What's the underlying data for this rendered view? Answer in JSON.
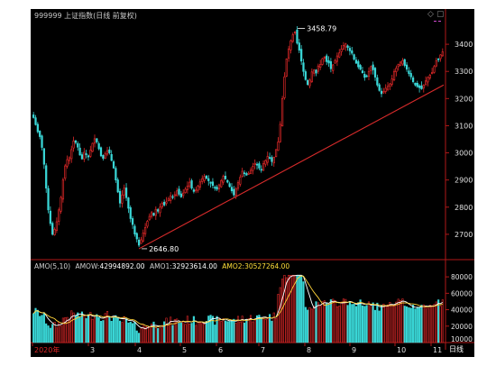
{
  "header": {
    "title": "999999 上证指数(日线 前复权)"
  },
  "volume_header": {
    "indicator": "AMO(5,10)",
    "amow_label": "AMOW:",
    "amow_value": "42994892.00",
    "amo1_label": "AMO1:",
    "amo1_value": "32923614.00",
    "amo2_label": "AMO2:",
    "amo2_value": "30527264.00"
  },
  "price_axis_labels": [
    "3400",
    "3300",
    "3200",
    "3100",
    "3000",
    "2900",
    "2800",
    "2700"
  ],
  "volume_axis_labels": [
    "80000",
    "60000",
    "40000",
    "20000",
    "10000"
  ],
  "volume_axis_unit": "10000",
  "x_axis_labels": [
    "2020年",
    "3",
    "4",
    "5",
    "6",
    "7",
    "8",
    "9",
    "10",
    "11"
  ],
  "period_button": "日线",
  "annotations": {
    "high": "3458.79",
    "low": "2646.80"
  },
  "colors": {
    "up": "#e02828",
    "down": "#3ad7d7",
    "trendline": "#d82b2b",
    "axis_text": "#e0e0e0",
    "amow_value": "#ffffff",
    "amo2_value": "#ffde39",
    "ma5": "#ffffff",
    "ma10": "#ffd33a"
  },
  "chart_data": {
    "type": "candlestick",
    "price_ylim": [
      2620,
      3490
    ],
    "volume_ylim": [
      0,
      90000
    ],
    "x_labels": [
      "2020年",
      "3",
      "4",
      "5",
      "6",
      "7",
      "8",
      "9",
      "10",
      "11"
    ],
    "high_point": 3458.79,
    "low_point": 2646.8,
    "trendline": {
      "from": 2646.8,
      "to": 3250
    },
    "closes": [
      3130,
      3104,
      3078,
      3060,
      3020,
      2958,
      2870,
      2790,
      2740,
      2700,
      2718,
      2746,
      2790,
      2836,
      2900,
      2952,
      2975,
      2982,
      3012,
      3044,
      3038,
      3021,
      2992,
      2978,
      3002,
      2996,
      2985,
      3010,
      3035,
      3052,
      3040,
      3015,
      2989,
      2980,
      2996,
      3008,
      3000,
      2972,
      2944,
      2900,
      2856,
      2815,
      2845,
      2870,
      2835,
      2796,
      2758,
      2736,
      2701,
      2683,
      2660,
      2680,
      2705,
      2725,
      2748,
      2766,
      2780,
      2770,
      2792,
      2785,
      2800,
      2815,
      2808,
      2820,
      2830,
      2842,
      2836,
      2846,
      2860,
      2848,
      2838,
      2852,
      2866,
      2878,
      2892,
      2870,
      2858,
      2863,
      2878,
      2893,
      2905,
      2913,
      2906,
      2897,
      2888,
      2880,
      2872,
      2866,
      2882,
      2898,
      2914,
      2904,
      2892,
      2876,
      2860,
      2845,
      2868,
      2890,
      2910,
      2932,
      2925,
      2918,
      2925,
      2936,
      2950,
      2961,
      2955,
      2944,
      2938,
      2960,
      2972,
      2987,
      2981,
      2968,
      2984,
      3012,
      3040,
      3105,
      3200,
      3280,
      3346,
      3383,
      3413,
      3435,
      3446,
      3404,
      3378,
      3338,
      3300,
      3270,
      3252,
      3268,
      3298,
      3305,
      3294,
      3320,
      3326,
      3347,
      3352,
      3336,
      3331,
      3310,
      3324,
      3340,
      3357,
      3368,
      3382,
      3395,
      3401,
      3388,
      3376,
      3367,
      3345,
      3330,
      3317,
      3308,
      3295,
      3278,
      3283,
      3300,
      3318,
      3306,
      3279,
      3250,
      3230,
      3218,
      3226,
      3238,
      3245,
      3254,
      3272,
      3300,
      3312,
      3326,
      3334,
      3340,
      3322,
      3308,
      3292,
      3280,
      3262,
      3250,
      3244,
      3240,
      3236,
      3250,
      3265,
      3278,
      3286,
      3296,
      3318,
      3340,
      3346,
      3361,
      3372
    ]
  }
}
